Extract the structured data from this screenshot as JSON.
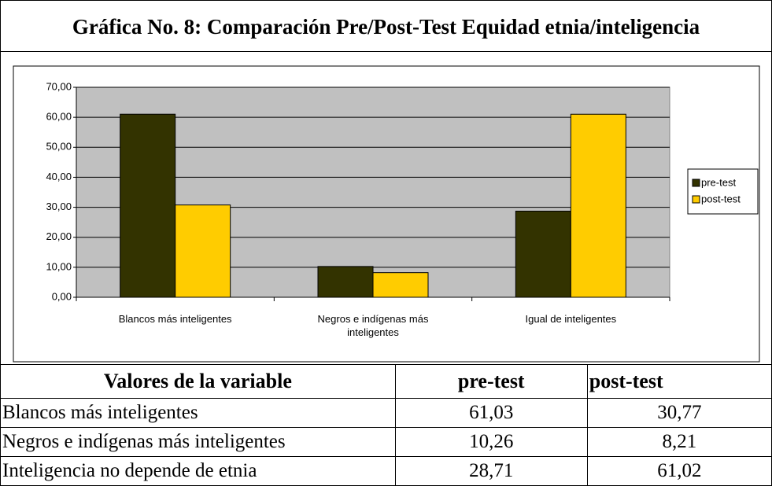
{
  "title": "Gráfica No. 8:  Comparación Pre/Post-Test Equidad etnia/inteligencia",
  "chart_data": {
    "type": "bar",
    "categories": [
      "Blancos más inteligentes",
      "Negros e indígenas más inteligentes",
      "Igual de inteligentes"
    ],
    "series": [
      {
        "name": "pre-test",
        "color": "#333300",
        "values": [
          61.03,
          10.26,
          28.71
        ]
      },
      {
        "name": "post-test",
        "color": "#ffcc00",
        "values": [
          30.77,
          8.21,
          61.02
        ]
      }
    ],
    "ylim": [
      0,
      70
    ],
    "yticks": [
      {
        "value": 0,
        "label": "0,00"
      },
      {
        "value": 10,
        "label": "10,00"
      },
      {
        "value": 20,
        "label": "20,00"
      },
      {
        "value": 30,
        "label": "30,00"
      },
      {
        "value": 40,
        "label": "40,00"
      },
      {
        "value": 50,
        "label": "50,00"
      },
      {
        "value": 60,
        "label": "60,00"
      },
      {
        "value": 70,
        "label": "70,00"
      }
    ],
    "grid": true,
    "legend": "right"
  },
  "table": {
    "header": [
      "Valores de la variable",
      "pre-test",
      "post-test"
    ],
    "rows": [
      [
        "Blancos más inteligentes",
        "61,03",
        "30,77"
      ],
      [
        "Negros e indígenas más inteligentes",
        "10,26",
        "8,21"
      ],
      [
        "Inteligencia no depende de etnia",
        "28,71",
        "61,02"
      ]
    ]
  }
}
